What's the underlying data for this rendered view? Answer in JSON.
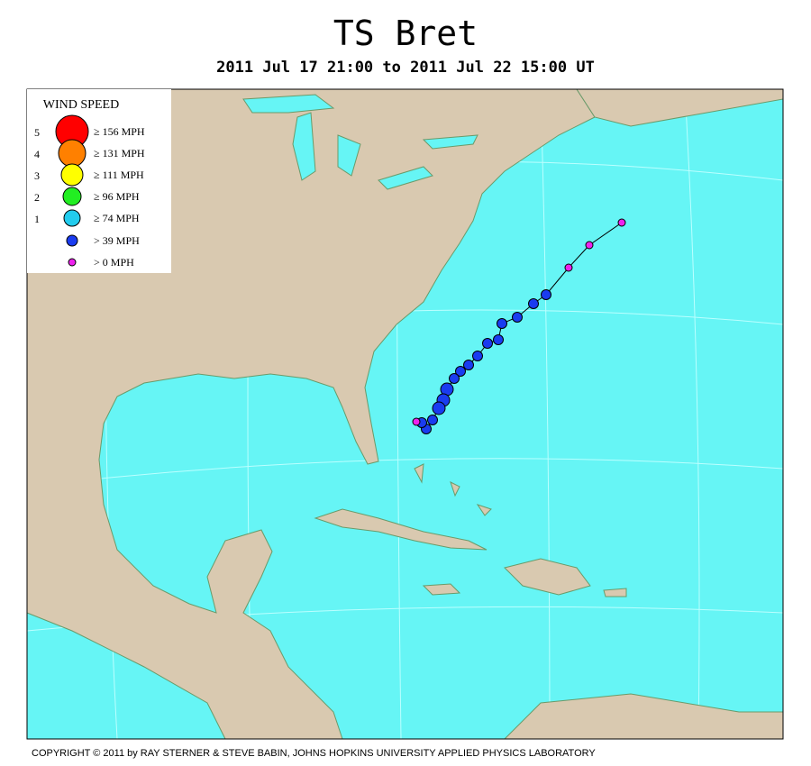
{
  "header": {
    "title": "TS Bret",
    "subtitle": "2011 Jul 17 21:00 to 2011 Jul 22 15:00 UT"
  },
  "legend": {
    "title": "WIND SPEED",
    "items": [
      {
        "category": "5",
        "label": "≥ 156 MPH",
        "color": "#ff0000"
      },
      {
        "category": "4",
        "label": "≥ 131 MPH",
        "color": "#ff8000"
      },
      {
        "category": "3",
        "label": "≥ 111 MPH",
        "color": "#ffff00"
      },
      {
        "category": "2",
        "label": "≥ 96 MPH",
        "color": "#22ee22"
      },
      {
        "category": "1",
        "label": "≥ 74 MPH",
        "color": "#22ccee"
      },
      {
        "label": "> 39 MPH",
        "color": "#1a3cf0"
      },
      {
        "label": "> 0 MPH",
        "color": "#ee22ee"
      }
    ]
  },
  "footer": {
    "copyright": "COPYRIGHT © 2011 by RAY STERNER & STEVE BABIN, JOHNS HOPKINS UNIVERSITY APPLIED PHYSICS LABORATORY"
  }
}
